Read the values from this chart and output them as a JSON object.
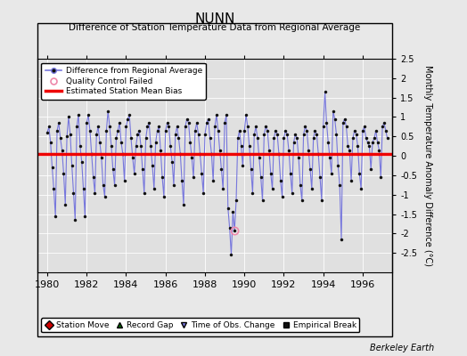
{
  "title": "NUNN",
  "subtitle": "Difference of Station Temperature Data from Regional Average",
  "ylabel": "Monthly Temperature Anomaly Difference (°C)",
  "credit": "Berkeley Earth",
  "xlim": [
    1979.5,
    1997.5
  ],
  "ylim": [
    -3,
    2.5
  ],
  "yticks": [
    -2.5,
    -2,
    -1.5,
    -1,
    -0.5,
    0,
    0.5,
    1,
    1.5,
    2,
    2.5
  ],
  "yticklabels": [
    "-2.5",
    "-2",
    "-1.5",
    "-1",
    "-0.5",
    "0",
    "0.5",
    "1",
    "1.5",
    "2",
    "2.5"
  ],
  "xticks": [
    1980,
    1982,
    1984,
    1986,
    1988,
    1990,
    1992,
    1994,
    1996
  ],
  "mean_bias": 0.05,
  "line_color": "#7777dd",
  "marker_color": "#111111",
  "bias_color": "#ee0000",
  "bg_color": "#e0e0e0",
  "fig_bg_color": "#e8e8e8",
  "qc_fail_x": 1989.5,
  "qc_fail_y": -1.92,
  "data_x": [
    1980.0,
    1980.083,
    1980.167,
    1980.25,
    1980.333,
    1980.417,
    1980.5,
    1980.583,
    1980.667,
    1980.75,
    1980.833,
    1980.917,
    1981.0,
    1981.083,
    1981.167,
    1981.25,
    1981.333,
    1981.417,
    1981.5,
    1981.583,
    1981.667,
    1981.75,
    1981.833,
    1981.917,
    1982.0,
    1982.083,
    1982.167,
    1982.25,
    1982.333,
    1982.417,
    1982.5,
    1982.583,
    1982.667,
    1982.75,
    1982.833,
    1982.917,
    1983.0,
    1983.083,
    1983.167,
    1983.25,
    1983.333,
    1983.417,
    1983.5,
    1983.583,
    1983.667,
    1983.75,
    1983.833,
    1983.917,
    1984.0,
    1984.083,
    1984.167,
    1984.25,
    1984.333,
    1984.417,
    1984.5,
    1984.583,
    1984.667,
    1984.75,
    1984.833,
    1984.917,
    1985.0,
    1985.083,
    1985.167,
    1985.25,
    1985.333,
    1985.417,
    1985.5,
    1985.583,
    1985.667,
    1985.75,
    1985.833,
    1985.917,
    1986.0,
    1986.083,
    1986.167,
    1986.25,
    1986.333,
    1986.417,
    1986.5,
    1986.583,
    1986.667,
    1986.75,
    1986.833,
    1986.917,
    1987.0,
    1987.083,
    1987.167,
    1987.25,
    1987.333,
    1987.417,
    1987.5,
    1987.583,
    1987.667,
    1987.75,
    1987.833,
    1987.917,
    1988.0,
    1988.083,
    1988.167,
    1988.25,
    1988.333,
    1988.417,
    1988.5,
    1988.583,
    1988.667,
    1988.75,
    1988.833,
    1988.917,
    1989.0,
    1989.083,
    1989.167,
    1989.25,
    1989.333,
    1989.417,
    1989.5,
    1989.583,
    1989.667,
    1989.75,
    1989.833,
    1989.917,
    1990.0,
    1990.083,
    1990.167,
    1990.25,
    1990.333,
    1990.417,
    1990.5,
    1990.583,
    1990.667,
    1990.75,
    1990.833,
    1990.917,
    1991.0,
    1991.083,
    1991.167,
    1991.25,
    1991.333,
    1991.417,
    1991.5,
    1991.583,
    1991.667,
    1991.75,
    1991.833,
    1991.917,
    1992.0,
    1992.083,
    1992.167,
    1992.25,
    1992.333,
    1992.417,
    1992.5,
    1992.583,
    1992.667,
    1992.75,
    1992.833,
    1992.917,
    1993.0,
    1993.083,
    1993.167,
    1993.25,
    1993.333,
    1993.417,
    1993.5,
    1993.583,
    1993.667,
    1993.75,
    1993.833,
    1993.917,
    1994.0,
    1994.083,
    1994.167,
    1994.25,
    1994.333,
    1994.417,
    1994.5,
    1994.583,
    1994.667,
    1994.75,
    1994.833,
    1994.917,
    1995.0,
    1995.083,
    1995.167,
    1995.25,
    1995.333,
    1995.417,
    1995.5,
    1995.583,
    1995.667,
    1995.75,
    1995.833,
    1995.917,
    1996.0,
    1996.083,
    1996.167,
    1996.25,
    1996.333,
    1996.417,
    1996.5,
    1996.583,
    1996.667,
    1996.75,
    1996.833,
    1996.917,
    1997.0,
    1997.083,
    1997.167,
    1997.25
  ],
  "data_y": [
    0.6,
    0.75,
    0.35,
    -0.3,
    -0.85,
    -1.55,
    0.65,
    0.85,
    0.45,
    0.15,
    -0.45,
    -1.25,
    0.5,
    1.0,
    0.55,
    -0.25,
    -0.95,
    -1.65,
    0.75,
    1.05,
    0.25,
    -0.15,
    -0.85,
    -1.55,
    0.85,
    1.05,
    0.65,
    0.05,
    -0.55,
    -0.95,
    0.55,
    0.75,
    0.35,
    -0.05,
    -0.75,
    -1.05,
    0.65,
    1.15,
    0.75,
    0.25,
    -0.35,
    -0.75,
    0.45,
    0.65,
    0.85,
    0.35,
    0.05,
    -0.65,
    0.75,
    0.95,
    1.05,
    0.45,
    -0.05,
    -0.45,
    0.25,
    0.55,
    0.65,
    0.25,
    -0.35,
    -0.95,
    0.45,
    0.75,
    0.85,
    0.25,
    -0.25,
    -0.85,
    0.35,
    0.65,
    0.75,
    0.15,
    -0.55,
    -1.05,
    0.65,
    0.85,
    0.75,
    0.25,
    -0.15,
    -0.75,
    0.55,
    0.75,
    0.45,
    0.05,
    -0.65,
    -1.25,
    0.75,
    0.95,
    0.85,
    0.35,
    -0.05,
    -0.55,
    0.65,
    0.85,
    0.55,
    0.05,
    -0.45,
    -0.95,
    0.55,
    0.85,
    0.95,
    0.45,
    0.05,
    -0.65,
    0.75,
    1.05,
    0.65,
    0.15,
    -0.35,
    -0.85,
    0.85,
    1.05,
    -1.35,
    -1.85,
    -2.55,
    -1.45,
    -1.92,
    -1.15,
    0.45,
    0.65,
    0.25,
    -0.25,
    0.65,
    1.05,
    0.75,
    0.25,
    -0.35,
    -0.95,
    0.55,
    0.75,
    0.45,
    -0.05,
    -0.55,
    -1.15,
    0.55,
    0.75,
    0.65,
    0.15,
    -0.45,
    -0.85,
    0.45,
    0.65,
    0.55,
    0.05,
    -0.65,
    -1.05,
    0.45,
    0.65,
    0.55,
    0.15,
    -0.45,
    -0.95,
    0.35,
    0.55,
    0.45,
    -0.05,
    -0.75,
    -1.15,
    0.55,
    0.75,
    0.65,
    0.15,
    -0.35,
    -0.85,
    0.45,
    0.65,
    0.55,
    0.05,
    -0.55,
    -1.15,
    0.75,
    1.65,
    0.85,
    0.35,
    -0.05,
    -0.45,
    1.15,
    0.95,
    0.55,
    -0.25,
    -0.75,
    -2.15,
    0.85,
    0.95,
    0.75,
    0.25,
    0.15,
    -0.65,
    0.45,
    0.65,
    0.55,
    0.25,
    -0.45,
    -0.85,
    0.65,
    0.75,
    0.45,
    0.35,
    0.25,
    -0.35,
    0.35,
    0.45,
    0.65,
    0.35,
    0.15,
    -0.55,
    0.75,
    0.85,
    0.65,
    0.45
  ]
}
